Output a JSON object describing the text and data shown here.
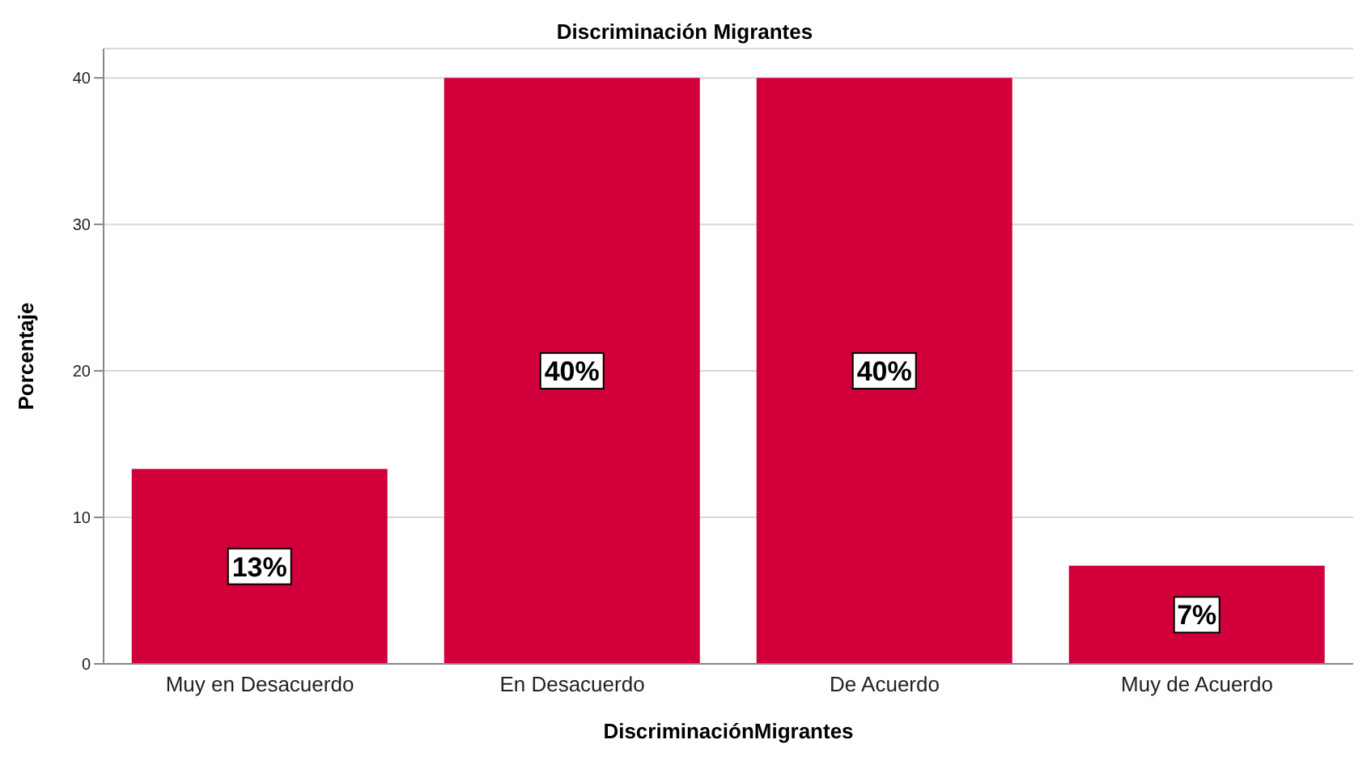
{
  "chart_data": {
    "type": "bar",
    "title": "Discriminación Migrantes",
    "xlabel": "DiscriminaciónMigrantes",
    "ylabel": "Porcentaje",
    "categories": [
      "Muy en Desacuerdo",
      "En Desacuerdo",
      "De Acuerdo",
      "Muy de Acuerdo"
    ],
    "values": [
      13.3,
      40,
      40,
      6.7
    ],
    "value_labels": [
      "13%",
      "40%",
      "40%",
      "7%"
    ],
    "color": "#d2003a",
    "ylim": [
      0,
      42
    ],
    "yticks": [
      0,
      10,
      20,
      30,
      40
    ],
    "grid": "y"
  }
}
